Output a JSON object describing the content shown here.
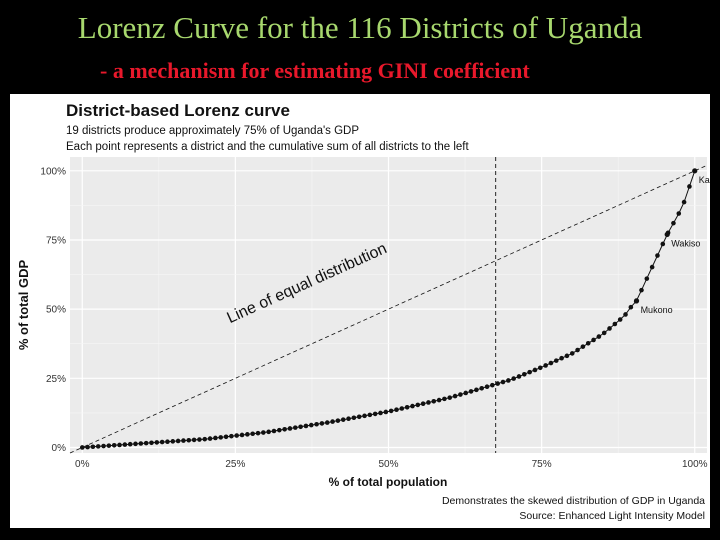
{
  "slide": {
    "title": "Lorenz Curve for the 116 Districts of Uganda",
    "subtitle": "- a mechanism for estimating GINI coefficient"
  },
  "chart_data": {
    "type": "line",
    "title": "District-based Lorenz curve",
    "subtitle_lines": [
      "19 districts produce approximately 75% of Uganda's GDP",
      "Each point represents a district and the cumulative sum of all districts to the left"
    ],
    "xlabel": "% of total population",
    "ylabel": "% of total GDP",
    "xlim": [
      -0.02,
      1.02
    ],
    "ylim": [
      -0.02,
      1.05
    ],
    "x_ticks": [
      0,
      0.25,
      0.5,
      0.75,
      1.0
    ],
    "x_tick_labels": [
      "0%",
      "25%",
      "50%",
      "75%",
      "100%"
    ],
    "y_ticks": [
      0,
      0.25,
      0.5,
      0.75,
      1.0
    ],
    "y_tick_labels": [
      "0%",
      "25%",
      "50%",
      "75%",
      "100%"
    ],
    "grid": true,
    "equality_line_label": "Line of equal distribution",
    "vertical_reference_x": 0.675,
    "curve_anchors": [
      [
        0.0,
        0.0
      ],
      [
        0.1,
        0.015
      ],
      [
        0.2,
        0.03
      ],
      [
        0.3,
        0.055
      ],
      [
        0.4,
        0.09
      ],
      [
        0.5,
        0.13
      ],
      [
        0.6,
        0.18
      ],
      [
        0.7,
        0.245
      ],
      [
        0.75,
        0.29
      ],
      [
        0.8,
        0.34
      ],
      [
        0.85,
        0.41
      ],
      [
        0.885,
        0.475
      ],
      [
        0.9,
        0.52
      ],
      [
        0.905,
        0.53
      ],
      [
        0.93,
        0.65
      ],
      [
        0.955,
        0.77
      ],
      [
        0.98,
        0.87
      ],
      [
        1.0,
        1.0
      ]
    ],
    "point_count": 116,
    "labeled_points": [
      {
        "name": "Kampala",
        "x": 1.0,
        "y": 1.0
      },
      {
        "name": "Wakiso",
        "x": 0.955,
        "y": 0.77
      },
      {
        "name": "Mukono",
        "x": 0.905,
        "y": 0.53
      }
    ],
    "caption_lines": [
      "Demonstrates the skewed distribution of GDP in Uganda",
      "Source: Enhanced Light Intensity Model"
    ],
    "colors": {
      "background": "#000000",
      "title": "#a8d86e",
      "subtitle": "#e8182b",
      "panel": "#ffffff",
      "plot_bg": "#ebebeb",
      "grid": "#ffffff",
      "ink": "#111111"
    }
  }
}
